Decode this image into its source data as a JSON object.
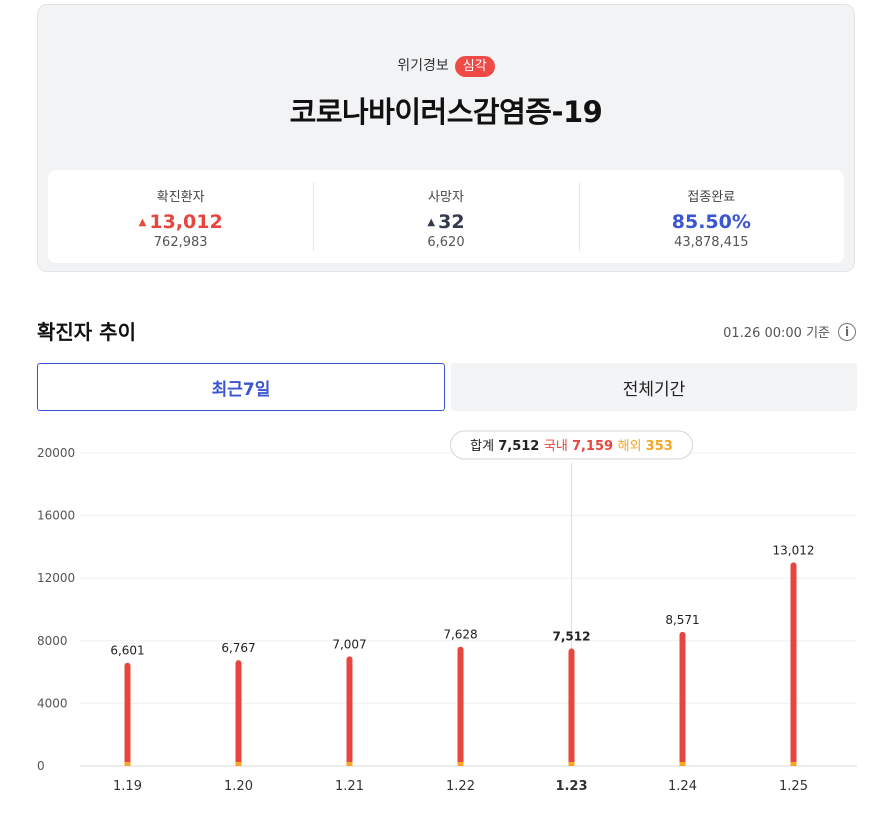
{
  "header": {
    "alert_label": "위기경보",
    "alert_level": "심각",
    "title": "코로나바이러스감염증-19"
  },
  "stats": [
    {
      "label": "확진환자",
      "value": "13,012",
      "arrow": "▲",
      "sub": "762,983",
      "color": "#e8453f"
    },
    {
      "label": "사망자",
      "value": "32",
      "arrow": "▲",
      "sub": "6,620",
      "color": "#333a4d"
    },
    {
      "label": "접종완료",
      "value": "85.50%",
      "sub": "43,878,415",
      "color": "#3a55d0"
    }
  ],
  "section": {
    "title": "확진자 추이",
    "as_of": "01.26 00:00 기준",
    "info_icon": "info-icon"
  },
  "tabs": [
    {
      "label": "최근7일",
      "active": true
    },
    {
      "label": "전체기간",
      "active": false
    }
  ],
  "tooltip": {
    "total_label": "합계",
    "total_value": "7,512",
    "domestic_label": "국내",
    "domestic_value": "7,159",
    "overseas_label": "해외",
    "overseas_value": "353"
  },
  "chart_data": {
    "type": "bar",
    "categories": [
      "1.19",
      "1.20",
      "1.21",
      "1.22",
      "1.23",
      "1.24",
      "1.25"
    ],
    "values": [
      6601,
      6767,
      7007,
      7628,
      7512,
      8571,
      13012
    ],
    "value_labels": [
      "6,601",
      "6,767",
      "7,007",
      "7,628",
      "7,512",
      "8,571",
      "13,012"
    ],
    "ylim": [
      0,
      20000
    ],
    "yticks": [
      0,
      4000,
      8000,
      12000,
      16000,
      20000
    ],
    "selected_index": 4,
    "grid": true,
    "colors": {
      "domestic": "#e8453f",
      "overseas": "#f5a623"
    }
  }
}
